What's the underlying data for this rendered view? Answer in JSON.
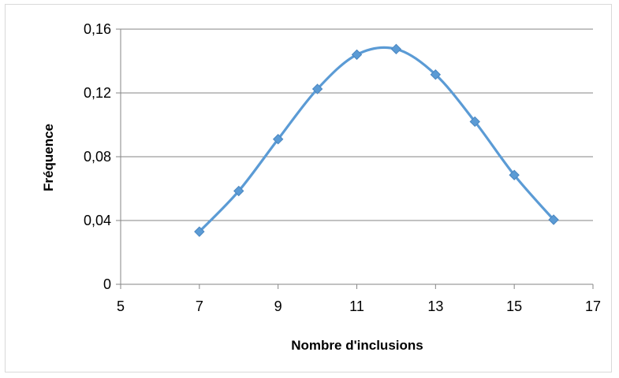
{
  "chart_data": {
    "type": "line",
    "title": "",
    "xlabel": "Nombre d'inclusions",
    "ylabel": "Fréquence",
    "xlim": [
      5,
      17
    ],
    "ylim": [
      0,
      0.16
    ],
    "x_ticks": [
      5,
      7,
      9,
      11,
      13,
      15,
      17
    ],
    "y_ticks": [
      0,
      0.04,
      0.08,
      0.12,
      0.16
    ],
    "x_tick_labels": [
      "5",
      "7",
      "9",
      "11",
      "13",
      "15",
      "17"
    ],
    "y_tick_labels": [
      "0",
      "0,04",
      "0,08",
      "0,12",
      "0,16"
    ],
    "grid": "horizontal",
    "legend": "none",
    "series": [
      {
        "color": "#5b9bd5",
        "marker": "diamond",
        "smooth": true,
        "x": [
          7,
          8,
          9,
          10,
          11,
          12,
          13,
          14,
          15,
          16
        ],
        "y": [
          0.033,
          0.0585,
          0.091,
          0.1225,
          0.144,
          0.1475,
          0.1315,
          0.102,
          0.0685,
          0.0405
        ]
      }
    ]
  }
}
